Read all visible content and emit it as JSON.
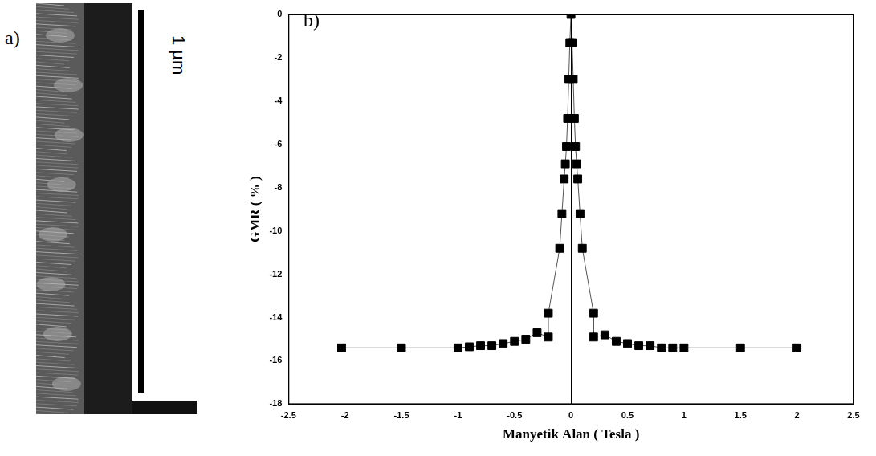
{
  "image_panel": {
    "label": "a)",
    "scale_bar": "1 µm"
  },
  "chart_data": {
    "type": "line",
    "panel_label": "b)",
    "x_label": "Manyetik Alan ( Tesla )",
    "y_label": "GMR ( % )",
    "x": [
      -2.03,
      -1.5,
      -1.0,
      -0.9,
      -0.8,
      -0.7,
      -0.6,
      -0.5,
      -0.4,
      -0.3,
      -0.2,
      -0.2,
      -0.1,
      -0.08,
      -0.06,
      -0.05,
      -0.04,
      -0.03,
      -0.02,
      -0.01,
      0,
      0.01,
      0.02,
      0.03,
      0.04,
      0.05,
      0.06,
      0.08,
      0.1,
      0.2,
      0.2,
      0.3,
      0.4,
      0.5,
      0.6,
      0.7,
      0.8,
      0.9,
      1.0,
      1.5,
      2.0
    ],
    "series": [
      {
        "name": "GMR",
        "color": "#000000",
        "marker": "square",
        "line_style": "solid",
        "values": [
          -15.4,
          -15.4,
          -15.4,
          -15.35,
          -15.3,
          -15.3,
          -15.2,
          -15.1,
          -15.0,
          -14.7,
          -14.9,
          -13.8,
          -10.8,
          -9.2,
          -7.6,
          -6.9,
          -6.1,
          -4.8,
          -3.0,
          -1.3,
          0,
          -1.3,
          -3.0,
          -4.8,
          -6.1,
          -6.9,
          -7.6,
          -9.2,
          -10.8,
          -13.8,
          -14.9,
          -14.8,
          -15.1,
          -15.2,
          -15.3,
          -15.3,
          -15.4,
          -15.4,
          -15.4,
          -15.4,
          -15.4
        ]
      }
    ],
    "xlim": [
      -2.5,
      2.5
    ],
    "xticks": [
      -2.5,
      -2,
      -1.5,
      -1,
      -0.5,
      0,
      0.5,
      1,
      1.5,
      2,
      2.5
    ],
    "ylim": [
      -18,
      0
    ],
    "yticks": [
      -18,
      -16,
      -14,
      -12,
      -10,
      -8,
      -6,
      -4,
      -2,
      0
    ],
    "grid": false
  }
}
